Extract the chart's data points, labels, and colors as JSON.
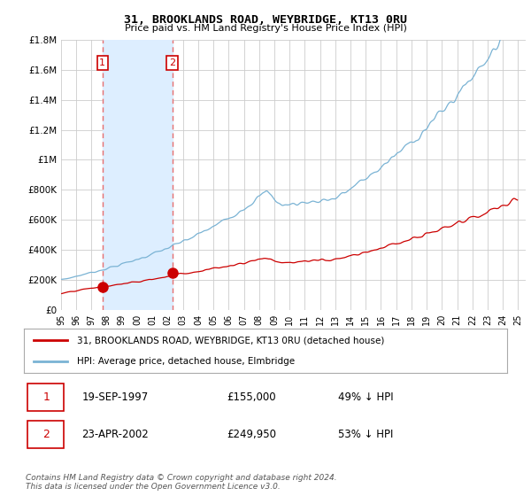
{
  "title": "31, BROOKLANDS ROAD, WEYBRIDGE, KT13 0RU",
  "subtitle": "Price paid vs. HM Land Registry's House Price Index (HPI)",
  "ylim": [
    0,
    1800000
  ],
  "yticks": [
    0,
    200000,
    400000,
    600000,
    800000,
    1000000,
    1200000,
    1400000,
    1600000,
    1800000
  ],
  "ytick_labels": [
    "£0",
    "£200K",
    "£400K",
    "£600K",
    "£800K",
    "£1M",
    "£1.2M",
    "£1.4M",
    "£1.6M",
    "£1.8M"
  ],
  "xlim_start": 1995.0,
  "xlim_end": 2025.5,
  "transaction1_date": 1997.72,
  "transaction1_price": 155000,
  "transaction2_date": 2002.31,
  "transaction2_price": 249950,
  "legend_line1": "31, BROOKLANDS ROAD, WEYBRIDGE, KT13 0RU (detached house)",
  "legend_line2": "HPI: Average price, detached house, Elmbridge",
  "table_row1_num": "1",
  "table_row1_date": "19-SEP-1997",
  "table_row1_price": "£155,000",
  "table_row1_hpi": "49% ↓ HPI",
  "table_row2_num": "2",
  "table_row2_date": "23-APR-2002",
  "table_row2_price": "£249,950",
  "table_row2_hpi": "53% ↓ HPI",
  "footnote": "Contains HM Land Registry data © Crown copyright and database right 2024.\nThis data is licensed under the Open Government Licence v3.0.",
  "hpi_color": "#7ab3d4",
  "price_color": "#cc0000",
  "vline_color": "#e87070",
  "shade_color": "#ddeeff",
  "background_color": "#ffffff",
  "plot_bg_color": "#ffffff"
}
